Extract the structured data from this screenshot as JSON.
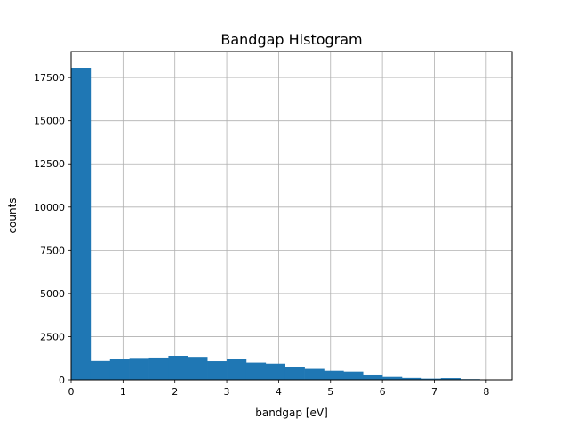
{
  "chart_data": {
    "type": "bar",
    "title": "Bandgap Histogram",
    "xlabel": "bandgap [eV]",
    "ylabel": "counts",
    "xlim": [
      0,
      8.5
    ],
    "ylim": [
      0,
      19000
    ],
    "grid": true,
    "bar_color": "#1f77b4",
    "grid_color": "#b0b0b0",
    "bins": {
      "start": 0,
      "width": 0.375,
      "counts": [
        18070,
        1090,
        1190,
        1270,
        1290,
        1390,
        1330,
        1080,
        1190,
        1000,
        940,
        740,
        640,
        530,
        480,
        310,
        170,
        110,
        70,
        100,
        40,
        10
      ]
    },
    "x_ticks": [
      {
        "value": 0,
        "label": "0"
      },
      {
        "value": 1,
        "label": "1"
      },
      {
        "value": 2,
        "label": "2"
      },
      {
        "value": 3,
        "label": "3"
      },
      {
        "value": 4,
        "label": "4"
      },
      {
        "value": 5,
        "label": "5"
      },
      {
        "value": 6,
        "label": "6"
      },
      {
        "value": 7,
        "label": "7"
      },
      {
        "value": 8,
        "label": "8"
      }
    ],
    "y_ticks": [
      {
        "value": 0,
        "label": "0"
      },
      {
        "value": 2500,
        "label": "2500"
      },
      {
        "value": 5000,
        "label": "5000"
      },
      {
        "value": 7500,
        "label": "7500"
      },
      {
        "value": 10000,
        "label": "10000"
      },
      {
        "value": 12500,
        "label": "12500"
      },
      {
        "value": 15000,
        "label": "15000"
      },
      {
        "value": 17500,
        "label": "17500"
      }
    ]
  }
}
